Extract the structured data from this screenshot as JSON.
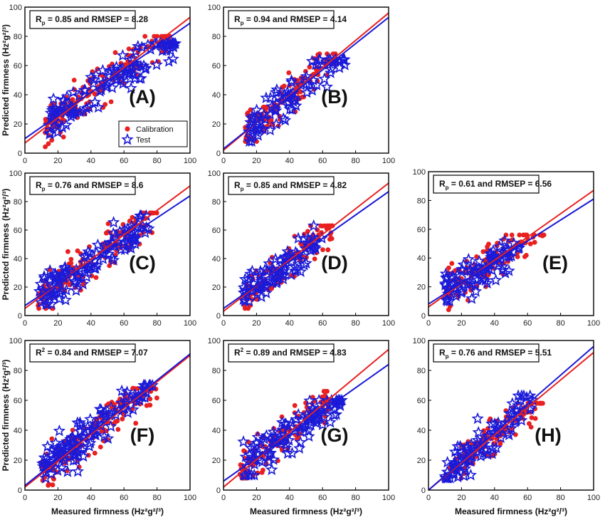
{
  "figure": {
    "xlabel": "Measured firmness (Hz²g²/³)",
    "ylabel": "Predicted firmness (Hz²g²/³)",
    "legend": {
      "calibration": "Calibration",
      "test": "Test",
      "calibration_color": "#e82020",
      "test_color": "#1a1ad8"
    },
    "ticks": [
      "0",
      "20",
      "40",
      "60",
      "80",
      "100"
    ]
  },
  "chart_data": [
    {
      "id": "A",
      "type": "scatter",
      "panel_label": "(A)",
      "stat_prefix": "R",
      "stat_sub": "p",
      "stat_text": " = 0.85 and RMSEP = 8.28",
      "xlim": [
        0,
        100
      ],
      "ylim": [
        0,
        100
      ],
      "ylabel_shown": true,
      "xlabel_shown": false,
      "legend": true,
      "series": [
        {
          "name": "Calibration",
          "marker": "circle",
          "color": "#e82020",
          "x_range": [
            12,
            88
          ],
          "y_range": [
            2,
            80
          ],
          "count": 150,
          "line": {
            "intercept": 7,
            "slope": 0.86
          }
        },
        {
          "name": "Test",
          "marker": "star",
          "color": "#1a1ad8",
          "x_range": [
            14,
            92
          ],
          "y_range": [
            10,
            75
          ],
          "count": 120,
          "line": {
            "intercept": 10,
            "slope": 0.79
          }
        }
      ]
    },
    {
      "id": "B",
      "type": "scatter",
      "panel_label": "(B)",
      "stat_prefix": "R",
      "stat_sub": "p",
      "stat_text": " = 0.94 and RMSEP = 4.14",
      "xlim": [
        0,
        100
      ],
      "ylim": [
        0,
        100
      ],
      "ylabel_shown": false,
      "xlabel_shown": false,
      "legend": false,
      "series": [
        {
          "name": "Calibration",
          "marker": "circle",
          "color": "#e82020",
          "x_range": [
            13,
            68
          ],
          "y_range": [
            8,
            68
          ],
          "count": 110,
          "line": {
            "intercept": 2,
            "slope": 0.94
          }
        },
        {
          "name": "Test",
          "marker": "star",
          "color": "#1a1ad8",
          "x_range": [
            15,
            76
          ],
          "y_range": [
            8,
            64
          ],
          "count": 90,
          "line": {
            "intercept": 3,
            "slope": 0.9
          }
        }
      ]
    },
    {
      "id": "C",
      "type": "scatter",
      "panel_label": "(C)",
      "stat_prefix": "R",
      "stat_sub": "p",
      "stat_text": " = 0.76 and RMSEP = 8.6",
      "xlim": [
        0,
        100
      ],
      "ylim": [
        0,
        100
      ],
      "ylabel_shown": true,
      "xlabel_shown": false,
      "legend": false,
      "series": [
        {
          "name": "Calibration",
          "marker": "circle",
          "color": "#e82020",
          "x_range": [
            8,
            80
          ],
          "y_range": [
            5,
            72
          ],
          "count": 150,
          "line": {
            "intercept": 5,
            "slope": 0.86
          }
        },
        {
          "name": "Test",
          "marker": "star",
          "color": "#1a1ad8",
          "x_range": [
            8,
            75
          ],
          "y_range": [
            8,
            70
          ],
          "count": 120,
          "line": {
            "intercept": 7,
            "slope": 0.77
          }
        }
      ]
    },
    {
      "id": "D",
      "type": "scatter",
      "panel_label": "(D)",
      "stat_prefix": "R",
      "stat_sub": "p",
      "stat_text": " = 0.85 and RMSEP = 4.82",
      "xlim": [
        0,
        100
      ],
      "ylim": [
        0,
        100
      ],
      "ylabel_shown": false,
      "xlabel_shown": false,
      "legend": false,
      "series": [
        {
          "name": "Calibration",
          "marker": "circle",
          "color": "#e82020",
          "x_range": [
            12,
            66
          ],
          "y_range": [
            5,
            63
          ],
          "count": 110,
          "line": {
            "intercept": 3,
            "slope": 0.9
          }
        },
        {
          "name": "Test",
          "marker": "star",
          "color": "#1a1ad8",
          "x_range": [
            12,
            60
          ],
          "y_range": [
            10,
            63
          ],
          "count": 90,
          "line": {
            "intercept": 5,
            "slope": 0.82
          }
        }
      ]
    },
    {
      "id": "E",
      "type": "scatter",
      "panel_label": "(E)",
      "stat_prefix": "R",
      "stat_sub": "p",
      "stat_text": " = 0.61 and RMSEP = 6.56",
      "xlim": [
        0,
        100
      ],
      "ylim": [
        0,
        100
      ],
      "ylabel_shown": false,
      "xlabel_shown": false,
      "legend": false,
      "series": [
        {
          "name": "Calibration",
          "marker": "circle",
          "color": "#e82020",
          "x_range": [
            10,
            70
          ],
          "y_range": [
            4,
            56
          ],
          "count": 120,
          "line": {
            "intercept": 6,
            "slope": 0.81
          }
        },
        {
          "name": "Test",
          "marker": "star",
          "color": "#1a1ad8",
          "x_range": [
            10,
            55
          ],
          "y_range": [
            10,
            52
          ],
          "count": 90,
          "line": {
            "intercept": 8,
            "slope": 0.73
          }
        }
      ]
    },
    {
      "id": "F",
      "type": "scatter",
      "panel_label": "(F)",
      "stat_prefix": "R",
      "stat_sub": "2",
      "stat_text": " = 0.84 and RMSEP = 7.07",
      "xlim": [
        0,
        100
      ],
      "ylim": [
        0,
        100
      ],
      "ylabel_shown": true,
      "xlabel_shown": true,
      "legend": false,
      "series": [
        {
          "name": "Calibration",
          "marker": "circle",
          "color": "#e82020",
          "x_range": [
            10,
            80
          ],
          "y_range": [
            2,
            68
          ],
          "count": 150,
          "line": {
            "intercept": 2,
            "slope": 0.88
          }
        },
        {
          "name": "Test",
          "marker": "star",
          "color": "#1a1ad8",
          "x_range": [
            10,
            78
          ],
          "y_range": [
            8,
            70
          ],
          "count": 120,
          "line": {
            "intercept": 3,
            "slope": 0.88
          }
        }
      ]
    },
    {
      "id": "G",
      "type": "scatter",
      "panel_label": "(G)",
      "stat_prefix": "R",
      "stat_sub": "2",
      "stat_text": " = 0.89 and RMSEP = 4.83",
      "xlim": [
        0,
        100
      ],
      "ylim": [
        0,
        100
      ],
      "ylabel_shown": false,
      "xlabel_shown": true,
      "legend": false,
      "series": [
        {
          "name": "Calibration",
          "marker": "circle",
          "color": "#e82020",
          "x_range": [
            10,
            64
          ],
          "y_range": [
            8,
            66
          ],
          "count": 120,
          "line": {
            "intercept": 2,
            "slope": 0.92
          }
        },
        {
          "name": "Test",
          "marker": "star",
          "color": "#1a1ad8",
          "x_range": [
            12,
            72
          ],
          "y_range": [
            10,
            60
          ],
          "count": 110,
          "line": {
            "intercept": 6,
            "slope": 0.78
          }
        }
      ]
    },
    {
      "id": "H",
      "type": "scatter",
      "panel_label": "(H)",
      "stat_prefix": "R",
      "stat_sub": "p",
      "stat_text": " = 0.76 and RMSEP = 5.51",
      "xlim": [
        0,
        100
      ],
      "ylim": [
        0,
        100
      ],
      "ylabel_shown": false,
      "xlabel_shown": true,
      "legend": false,
      "series": [
        {
          "name": "Calibration",
          "marker": "circle",
          "color": "#e82020",
          "x_range": [
            10,
            70
          ],
          "y_range": [
            5,
            58
          ],
          "count": 110,
          "line": {
            "intercept": 0,
            "slope": 0.92
          }
        },
        {
          "name": "Test",
          "marker": "star",
          "color": "#1a1ad8",
          "x_range": [
            10,
            64
          ],
          "y_range": [
            8,
            63
          ],
          "count": 90,
          "line": {
            "intercept": 0,
            "slope": 0.96
          }
        }
      ]
    }
  ]
}
